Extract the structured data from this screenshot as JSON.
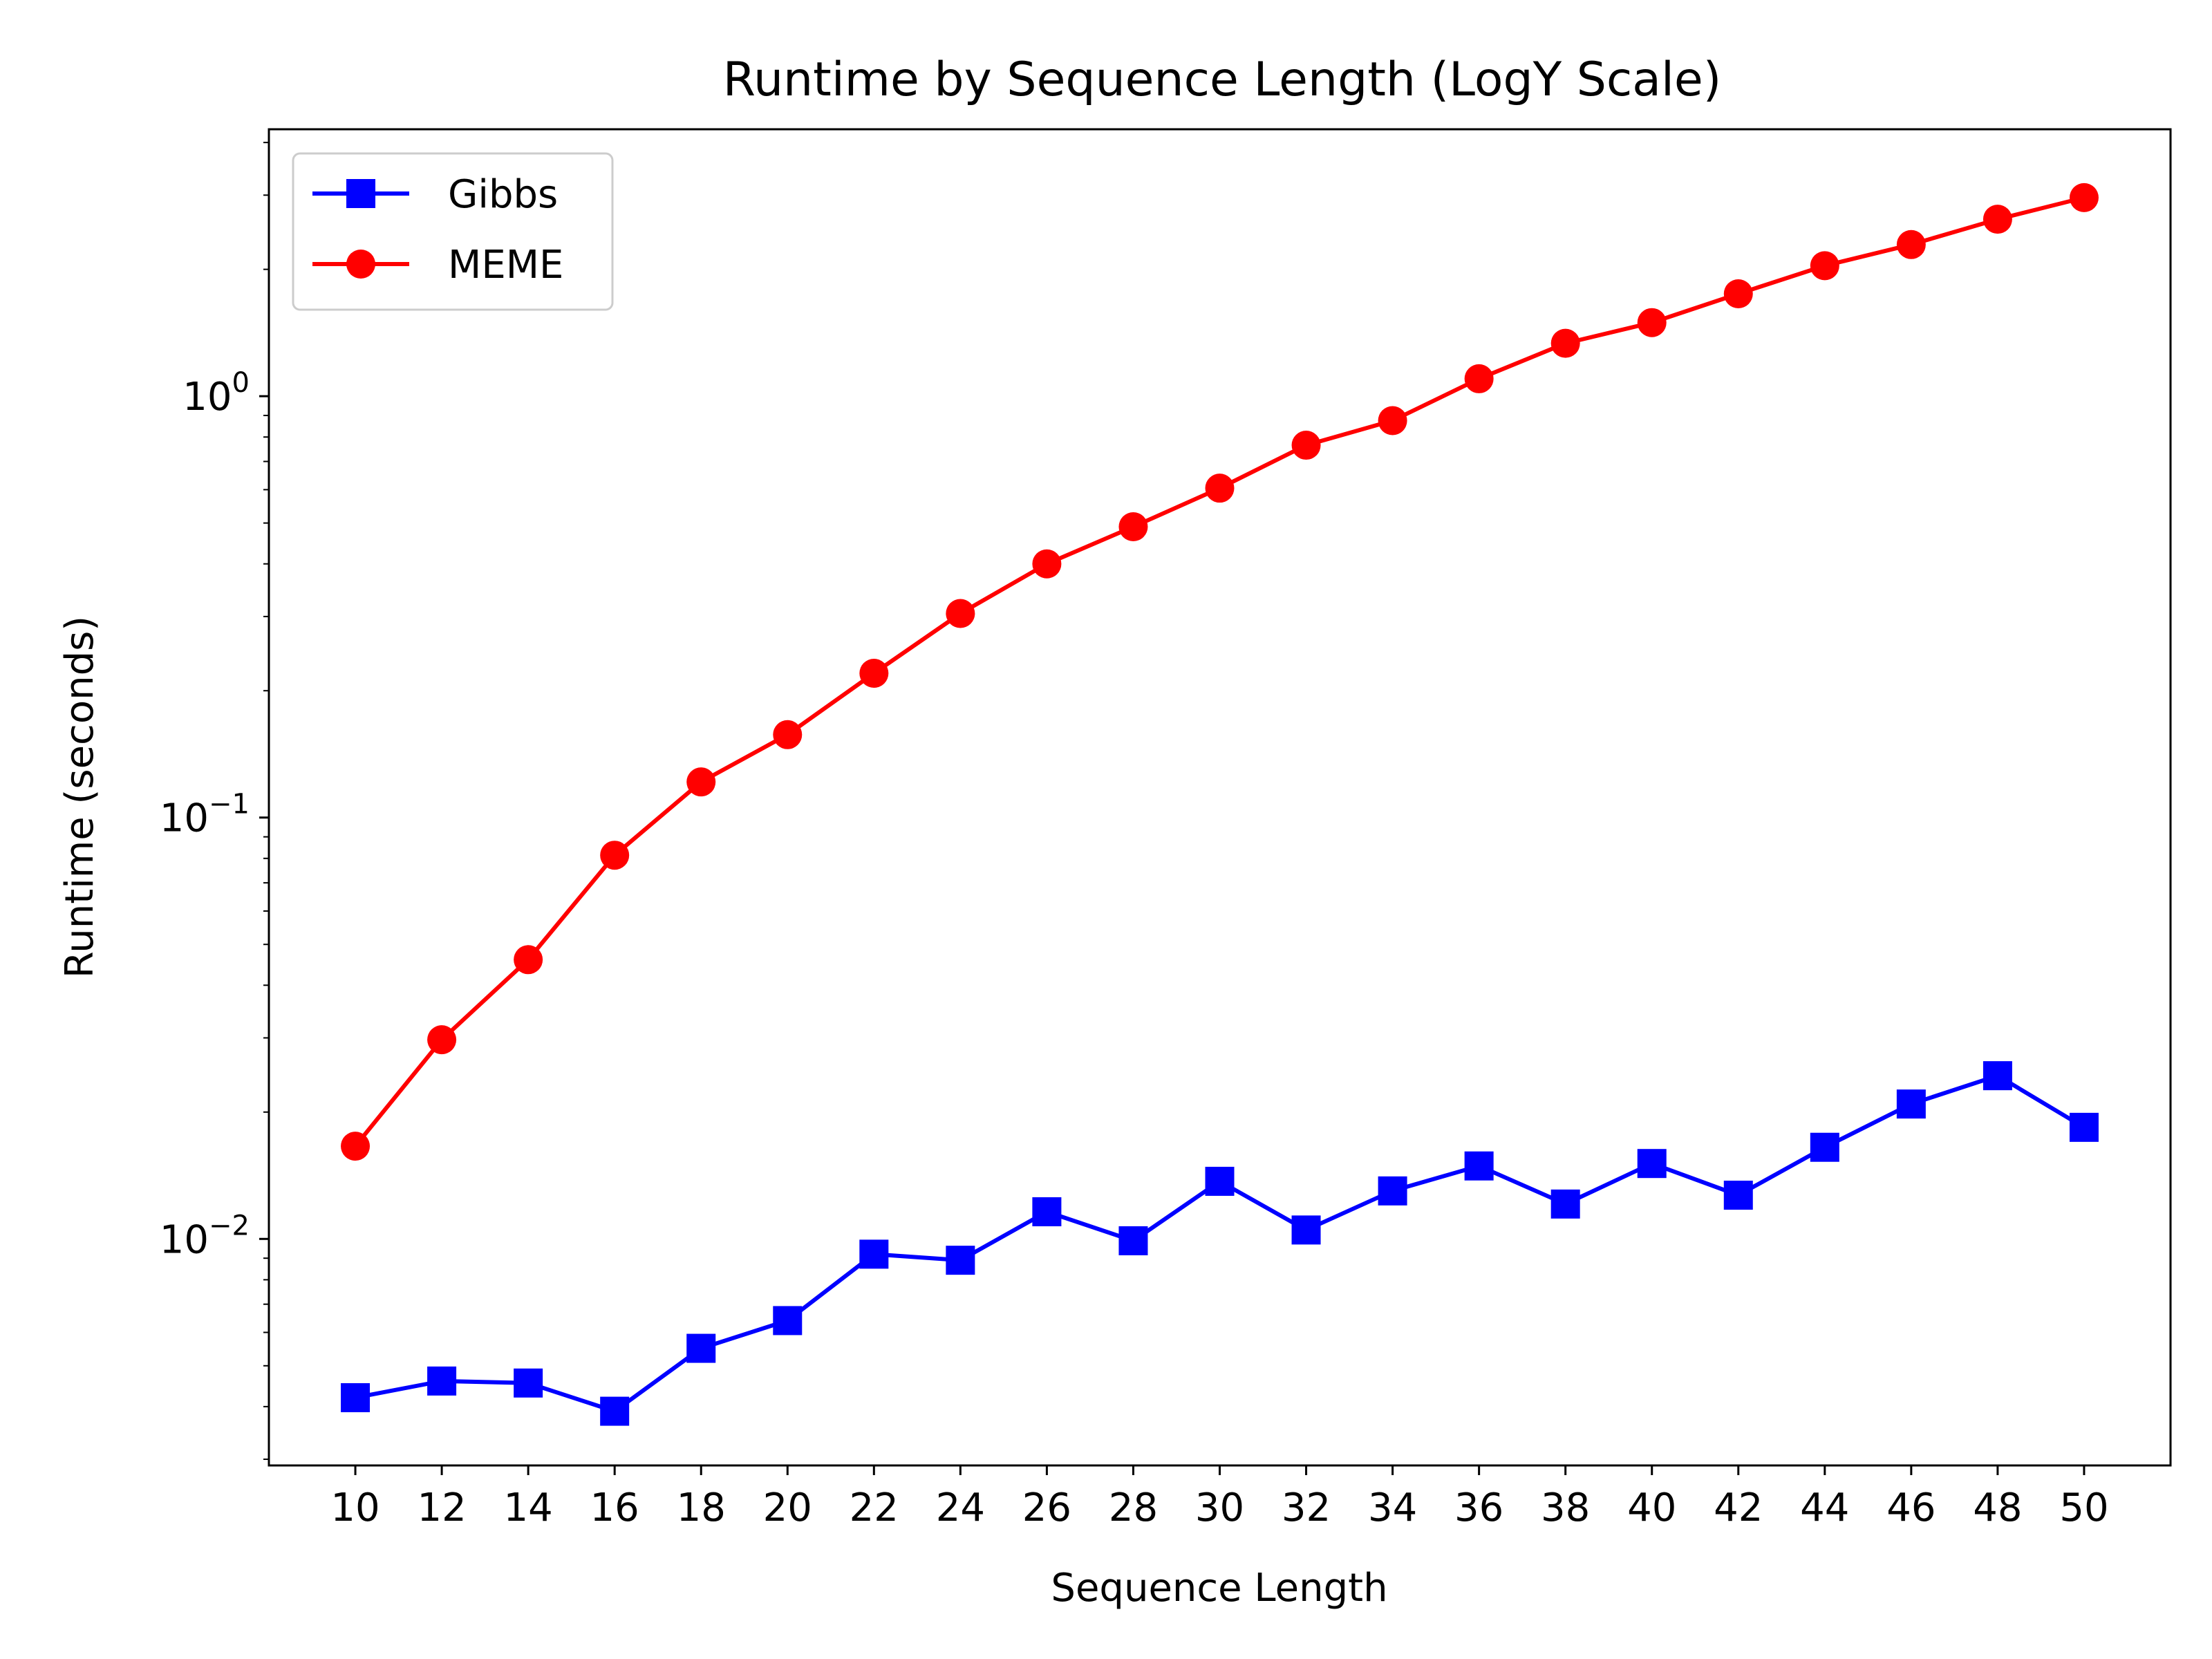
{
  "chart_data": {
    "type": "line",
    "title": "Runtime by Sequence Length (LogY Scale)",
    "xlabel": "Sequence Length",
    "ylabel": "Runtime (seconds)",
    "y_scale": "log",
    "x": [
      10,
      12,
      14,
      16,
      18,
      20,
      22,
      24,
      26,
      28,
      30,
      32,
      34,
      36,
      38,
      40,
      42,
      44,
      46,
      48,
      50
    ],
    "x_ticks": [
      "10",
      "12",
      "14",
      "16",
      "18",
      "20",
      "22",
      "24",
      "26",
      "28",
      "30",
      "32",
      "34",
      "36",
      "38",
      "40",
      "42",
      "44",
      "46",
      "48",
      "50"
    ],
    "xlim": [
      8,
      52
    ],
    "ylim": [
      0.0029,
      4.3
    ],
    "y_major_ticks": [
      {
        "value": 0.01,
        "base": "10",
        "exp": "−2"
      },
      {
        "value": 0.1,
        "base": "10",
        "exp": "−1"
      },
      {
        "value": 1,
        "base": "10",
        "exp": "0"
      }
    ],
    "legend_position": "upper-left",
    "grid": false,
    "series": [
      {
        "name": "Gibbs",
        "color": "#0000ff",
        "marker": "square",
        "values": [
          0.0042,
          0.0046,
          0.00455,
          0.0039,
          0.0055,
          0.0064,
          0.0092,
          0.0089,
          0.0116,
          0.0099,
          0.0137,
          0.0105,
          0.013,
          0.0149,
          0.0121,
          0.0151,
          0.0127,
          0.0165,
          0.0209,
          0.0244,
          0.0184
        ]
      },
      {
        "name": "MEME",
        "color": "#ff0000",
        "marker": "circle",
        "values": [
          0.0166,
          0.0297,
          0.046,
          0.0814,
          0.1215,
          0.1573,
          0.22,
          0.305,
          0.4,
          0.49,
          0.605,
          0.765,
          0.875,
          1.1,
          1.335,
          1.495,
          1.75,
          2.04,
          2.29,
          2.63,
          2.96
        ]
      }
    ]
  }
}
